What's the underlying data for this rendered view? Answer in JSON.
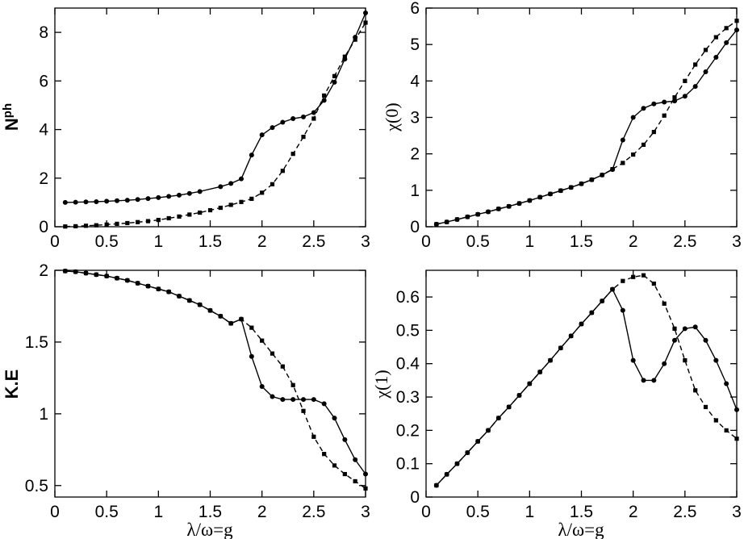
{
  "chart_data": [
    {
      "type": "line",
      "ylabel": "N",
      "ylabel_sup": "ph",
      "xlabel": "",
      "xlim": [
        0,
        3
      ],
      "ylim": [
        0,
        9
      ],
      "xticks": [
        "0",
        "0.5",
        "1",
        "1.5",
        "2",
        "2.5",
        "3"
      ],
      "yticks": [
        "0",
        "2",
        "4",
        "6",
        "8"
      ],
      "grid": false,
      "series": [
        {
          "style": "solid",
          "marker": "circle",
          "x": [
            0.1,
            0.2,
            0.3,
            0.4,
            0.5,
            0.6,
            0.7,
            0.8,
            0.9,
            1.0,
            1.1,
            1.2,
            1.3,
            1.4,
            1.6,
            1.7,
            1.8,
            1.9,
            2.0,
            2.1,
            2.2,
            2.3,
            2.4,
            2.5,
            2.6,
            2.7,
            2.8,
            2.9,
            3.0
          ],
          "y": [
            1.0,
            1.01,
            1.02,
            1.03,
            1.05,
            1.07,
            1.09,
            1.12,
            1.16,
            1.2,
            1.25,
            1.3,
            1.37,
            1.45,
            1.65,
            1.78,
            1.97,
            2.95,
            3.78,
            4.08,
            4.3,
            4.45,
            4.52,
            4.7,
            5.2,
            5.95,
            6.9,
            7.8,
            8.8
          ]
        },
        {
          "style": "dashed",
          "marker": "square",
          "x": [
            0.1,
            0.2,
            0.3,
            0.4,
            0.5,
            0.6,
            0.7,
            0.8,
            0.9,
            1.0,
            1.1,
            1.2,
            1.3,
            1.4,
            1.5,
            1.6,
            1.7,
            1.8,
            1.9,
            2.0,
            2.1,
            2.2,
            2.3,
            2.4,
            2.5,
            2.6,
            2.7,
            2.8,
            2.9,
            3.0
          ],
          "y": [
            0.01,
            0.02,
            0.04,
            0.06,
            0.09,
            0.12,
            0.15,
            0.19,
            0.23,
            0.28,
            0.35,
            0.42,
            0.5,
            0.58,
            0.68,
            0.78,
            0.9,
            1.02,
            1.15,
            1.4,
            1.75,
            2.3,
            3.0,
            3.7,
            4.45,
            5.4,
            6.2,
            7.0,
            7.7,
            8.4
          ]
        }
      ]
    },
    {
      "type": "line",
      "ylabel": "χ(0)",
      "xlabel": "",
      "xlim": [
        0,
        3
      ],
      "ylim": [
        0,
        6
      ],
      "xticks": [
        "0",
        "0.5",
        "1",
        "1.5",
        "2",
        "2.5",
        "3"
      ],
      "yticks": [
        "0",
        "1",
        "2",
        "3",
        "4",
        "5",
        "6"
      ],
      "grid": false,
      "series": [
        {
          "style": "solid",
          "marker": "circle",
          "x": [
            0.1,
            0.2,
            0.3,
            0.4,
            0.5,
            0.6,
            0.7,
            0.8,
            0.9,
            1.0,
            1.1,
            1.2,
            1.3,
            1.4,
            1.5,
            1.6,
            1.7,
            1.8,
            1.9,
            2.0,
            2.1,
            2.2,
            2.3,
            2.4,
            2.5,
            2.6,
            2.7,
            2.8,
            2.9,
            3.0
          ],
          "y": [
            0.07,
            0.13,
            0.2,
            0.27,
            0.34,
            0.41,
            0.49,
            0.56,
            0.64,
            0.72,
            0.81,
            0.9,
            0.99,
            1.08,
            1.18,
            1.29,
            1.42,
            1.57,
            2.38,
            3.0,
            3.25,
            3.37,
            3.42,
            3.45,
            3.58,
            3.85,
            4.25,
            4.65,
            5.05,
            5.4
          ]
        },
        {
          "style": "dashed",
          "marker": "square",
          "x": [
            0.1,
            0.2,
            0.3,
            0.4,
            0.5,
            0.6,
            0.7,
            0.8,
            0.9,
            1.0,
            1.1,
            1.2,
            1.3,
            1.4,
            1.5,
            1.6,
            1.7,
            1.8,
            1.9,
            2.0,
            2.1,
            2.2,
            2.3,
            2.4,
            2.5,
            2.6,
            2.7,
            2.8,
            2.9,
            3.0
          ],
          "y": [
            0.07,
            0.13,
            0.2,
            0.27,
            0.34,
            0.41,
            0.49,
            0.56,
            0.64,
            0.72,
            0.81,
            0.9,
            0.99,
            1.08,
            1.18,
            1.29,
            1.42,
            1.58,
            1.75,
            1.98,
            2.25,
            2.6,
            3.05,
            3.55,
            4.0,
            4.45,
            4.85,
            5.2,
            5.45,
            5.65
          ]
        }
      ]
    },
    {
      "type": "line",
      "ylabel": "K.E",
      "xlabel": "λ/ω=g",
      "xlim": [
        0,
        3
      ],
      "ylim": [
        0.42,
        2.0
      ],
      "xticks": [
        "0",
        "0.5",
        "1",
        "1.5",
        "2",
        "2.5",
        "3"
      ],
      "yticks": [
        "0.5",
        "1",
        "1.5",
        "2"
      ],
      "grid": false,
      "series": [
        {
          "style": "solid",
          "marker": "circle",
          "x": [
            0.1,
            0.2,
            0.3,
            0.4,
            0.5,
            0.6,
            0.7,
            0.8,
            0.9,
            1.0,
            1.1,
            1.2,
            1.3,
            1.4,
            1.5,
            1.6,
            1.7,
            1.8,
            1.9,
            2.0,
            2.1,
            2.2,
            2.3,
            2.4,
            2.5,
            2.6,
            2.7,
            2.8,
            2.9,
            3.0
          ],
          "y": [
            1.995,
            1.99,
            1.98,
            1.97,
            1.96,
            1.945,
            1.93,
            1.91,
            1.89,
            1.87,
            1.85,
            1.82,
            1.79,
            1.76,
            1.72,
            1.68,
            1.63,
            1.66,
            1.4,
            1.19,
            1.12,
            1.1,
            1.1,
            1.1,
            1.1,
            1.07,
            0.97,
            0.82,
            0.68,
            0.58
          ]
        },
        {
          "style": "dashed",
          "marker": "square",
          "x": [
            0.1,
            0.2,
            0.3,
            0.4,
            0.5,
            0.6,
            0.7,
            0.8,
            0.9,
            1.0,
            1.1,
            1.2,
            1.3,
            1.4,
            1.5,
            1.6,
            1.7,
            1.8,
            1.9,
            2.0,
            2.1,
            2.2,
            2.3,
            2.4,
            2.5,
            2.6,
            2.7,
            2.8,
            2.9,
            3.0
          ],
          "y": [
            1.995,
            1.99,
            1.98,
            1.97,
            1.96,
            1.945,
            1.93,
            1.91,
            1.89,
            1.87,
            1.85,
            1.82,
            1.79,
            1.76,
            1.72,
            1.68,
            1.63,
            1.66,
            1.6,
            1.51,
            1.42,
            1.33,
            1.2,
            1.02,
            0.84,
            0.72,
            0.64,
            0.58,
            0.53,
            0.48
          ]
        }
      ]
    },
    {
      "type": "line",
      "ylabel": "χ(1)",
      "xlabel": "λ/ω=g",
      "xlim": [
        0,
        3
      ],
      "ylim": [
        0,
        0.68
      ],
      "xticks": [
        "0",
        "0.5",
        "1",
        "1.5",
        "2",
        "2.5",
        "3"
      ],
      "yticks": [
        "0",
        "0.1",
        "0.2",
        "0.3",
        "0.4",
        "0.5",
        "0.6"
      ],
      "grid": false,
      "series": [
        {
          "style": "solid",
          "marker": "circle",
          "x": [
            0.1,
            0.2,
            0.3,
            0.4,
            0.5,
            0.6,
            0.7,
            0.8,
            0.9,
            1.0,
            1.1,
            1.2,
            1.3,
            1.4,
            1.5,
            1.6,
            1.7,
            1.8,
            1.9,
            2.0,
            2.1,
            2.2,
            2.3,
            2.4,
            2.5,
            2.6,
            2.7,
            2.8,
            2.9,
            3.0
          ],
          "y": [
            0.035,
            0.068,
            0.1,
            0.133,
            0.167,
            0.2,
            0.237,
            0.27,
            0.305,
            0.34,
            0.375,
            0.41,
            0.447,
            0.483,
            0.519,
            0.553,
            0.588,
            0.623,
            0.56,
            0.41,
            0.35,
            0.35,
            0.4,
            0.47,
            0.505,
            0.51,
            0.47,
            0.41,
            0.34,
            0.262
          ]
        },
        {
          "style": "dashed",
          "marker": "square",
          "x": [
            0.1,
            0.2,
            0.3,
            0.4,
            0.5,
            0.6,
            0.7,
            0.8,
            0.9,
            1.0,
            1.1,
            1.2,
            1.3,
            1.4,
            1.5,
            1.6,
            1.7,
            1.8,
            1.9,
            2.0,
            2.1,
            2.2,
            2.3,
            2.4,
            2.5,
            2.6,
            2.7,
            2.8,
            2.9,
            3.0
          ],
          "y": [
            0.035,
            0.068,
            0.1,
            0.133,
            0.167,
            0.2,
            0.237,
            0.27,
            0.305,
            0.34,
            0.375,
            0.41,
            0.447,
            0.483,
            0.519,
            0.553,
            0.588,
            0.623,
            0.648,
            0.66,
            0.665,
            0.64,
            0.58,
            0.505,
            0.41,
            0.32,
            0.27,
            0.23,
            0.2,
            0.175
          ]
        }
      ]
    }
  ]
}
